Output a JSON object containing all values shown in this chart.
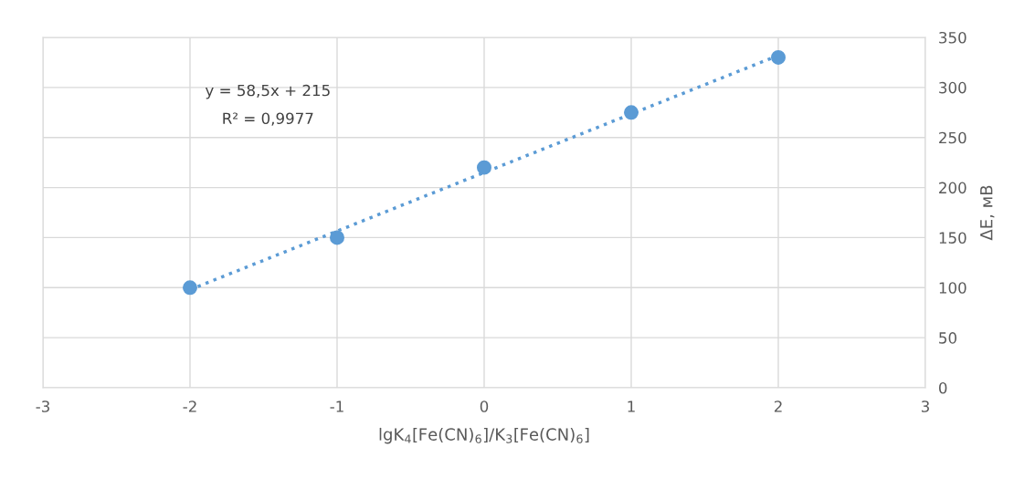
{
  "chart_data": {
    "type": "scatter",
    "xlabel": "lgK$_{4}$[Fe(CN)$_{6}$]/K$_{3}$[Fe(CN)$_{6}$]",
    "ylabel": "ΔE, мВ",
    "series": [
      {
        "color": "#5b9bd5",
        "x": [
          -2,
          -1,
          0,
          1,
          2
        ],
        "values": [
          100,
          150,
          220,
          275,
          330
        ],
        "marker": "circle"
      },
      {
        "type": "line",
        "color": "#5b9bd5",
        "x": [
          -2,
          2
        ],
        "values": [
          98,
          332
        ],
        "line_style": "dotted",
        "marker": "none"
      }
    ],
    "xlim": [
      -3,
      3
    ],
    "xticks": [
      -3,
      -2,
      -1,
      0,
      1,
      2,
      3
    ],
    "ylim": [
      0,
      350
    ],
    "yticks": [
      0,
      50,
      100,
      150,
      200,
      250,
      300,
      350
    ],
    "grid": true,
    "annotations": [
      "y = 58,5x + 215",
      "R² = 0,9977"
    ]
  }
}
